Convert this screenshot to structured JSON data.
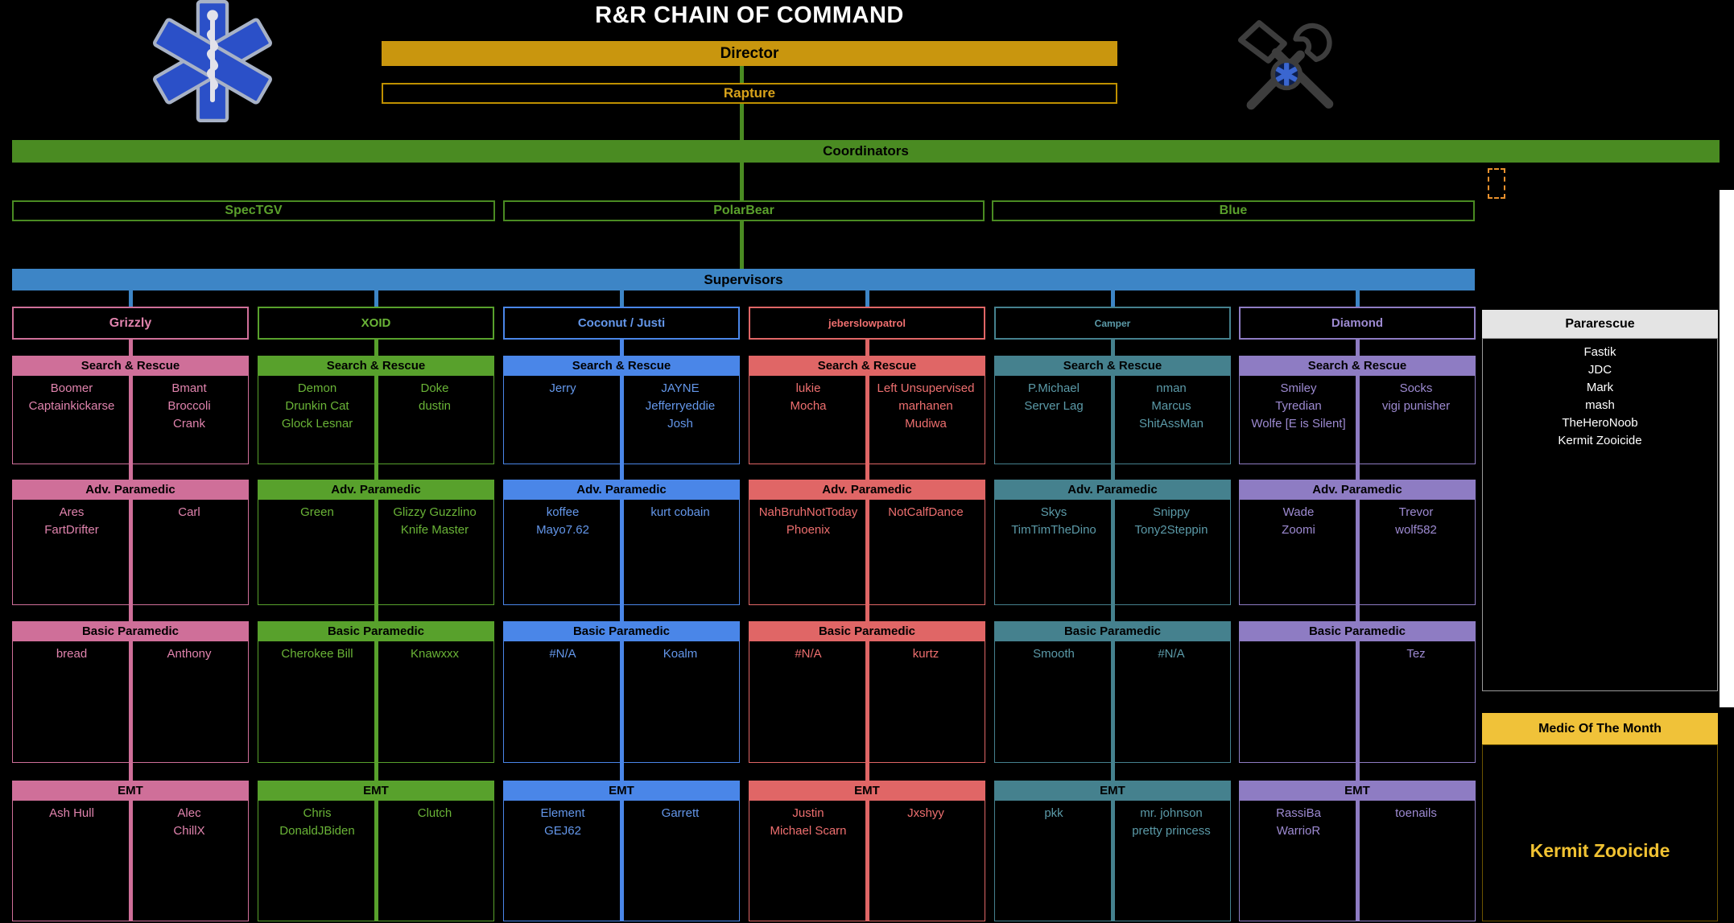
{
  "title": "R&R CHAIN OF COMMAND",
  "director": {
    "label": "Director"
  },
  "rapture": {
    "label": "Rapture"
  },
  "coordinators": {
    "label": "Coordinators",
    "members": [
      {
        "name": "SpecTGV"
      },
      {
        "name": "PolarBear"
      },
      {
        "name": "Blue"
      }
    ]
  },
  "supervisors": {
    "label": "Supervisors"
  },
  "columns": [
    {
      "name": "Grizzly",
      "fill": "#cf6f99",
      "text": "#e083ad",
      "sections": [
        {
          "title": "Search & Rescue",
          "left": [
            "Boomer",
            "Captainkickarse"
          ],
          "right": [
            "Bmant",
            "Broccoli",
            "Crank"
          ]
        },
        {
          "title": "Adv. Paramedic",
          "left": [
            "Ares",
            "FartDrifter"
          ],
          "right": [
            "Carl"
          ]
        },
        {
          "title": "Basic Paramedic",
          "left": [
            "bread"
          ],
          "right": [
            "Anthony"
          ]
        },
        {
          "title": "EMT",
          "left": [
            "Ash Hull"
          ],
          "right": [
            "Alec",
            "ChillX"
          ]
        }
      ]
    },
    {
      "name": "XOID",
      "fill": "#58a12c",
      "text": "#6ab437",
      "sections": [
        {
          "title": "Search & Rescue",
          "left": [
            "Demon",
            "Drunkin Cat",
            "Glock Lesnar"
          ],
          "right": [
            "Doke",
            "dustin"
          ]
        },
        {
          "title": "Adv. Paramedic",
          "left": [
            "Green"
          ],
          "right": [
            "Glizzy Guzzlino",
            "Knife Master"
          ]
        },
        {
          "title": "Basic Paramedic",
          "left": [
            "Cherokee Bill"
          ],
          "right": [
            "Knawxxx"
          ]
        },
        {
          "title": "EMT",
          "left": [
            "Chris",
            "DonaldJBiden"
          ],
          "right": [
            "Clutch"
          ]
        }
      ]
    },
    {
      "name": "Coconut / Justi",
      "fill": "#4a86e8",
      "text": "#6497ea",
      "sections": [
        {
          "title": "Search & Rescue",
          "left": [
            "Jerry"
          ],
          "right": [
            "JAYNE",
            "Jefferryeddie",
            "Josh"
          ]
        },
        {
          "title": "Adv. Paramedic",
          "left": [
            "koffee",
            "Mayo7.62"
          ],
          "right": [
            "kurt cobain"
          ]
        },
        {
          "title": "Basic Paramedic",
          "left": [
            "#N/A"
          ],
          "right": [
            "Koalm"
          ]
        },
        {
          "title": "EMT",
          "left": [
            "Element",
            "GEJ62"
          ],
          "right": [
            "Garrett"
          ]
        }
      ]
    },
    {
      "name": "jeberslowpatrol",
      "fill": "#e06666",
      "text": "#ee6f6f",
      "sections": [
        {
          "title": "Search & Rescue",
          "left": [
            "lukie",
            "Mocha"
          ],
          "right": [
            "Left Unsupervised",
            "marhanen",
            "Mudiwa"
          ]
        },
        {
          "title": "Adv. Paramedic",
          "left": [
            "NahBruhNotToday",
            "Phoenix"
          ],
          "right": [
            "NotCalfDance"
          ]
        },
        {
          "title": "Basic Paramedic",
          "left": [
            "#N/A"
          ],
          "right": [
            "kurtz"
          ]
        },
        {
          "title": "EMT",
          "left": [
            "Justin",
            "Michael Scarn"
          ],
          "right": [
            "Jxshyy"
          ]
        }
      ]
    },
    {
      "name": "Camper",
      "fill": "#45818e",
      "text": "#5b9aa8",
      "sections": [
        {
          "title": "Search & Rescue",
          "left": [
            "P.Michael",
            "Server Lag"
          ],
          "right": [
            "nman",
            "Marcus",
            "ShitAssMan"
          ]
        },
        {
          "title": "Adv. Paramedic",
          "left": [
            "Skys",
            "TimTimTheDino"
          ],
          "right": [
            "Snippy",
            "Tony2Steppin"
          ]
        },
        {
          "title": "Basic Paramedic",
          "left": [
            "Smooth"
          ],
          "right": [
            "#N/A"
          ]
        },
        {
          "title": "EMT",
          "left": [
            "pkk"
          ],
          "right": [
            "mr. johnson",
            "pretty princess"
          ]
        }
      ]
    },
    {
      "name": "Diamond",
      "fill": "#8e7cc3",
      "text": "#9d8ad1",
      "sections": [
        {
          "title": "Search & Rescue",
          "left": [
            "Smiley",
            "Tyredian",
            "Wolfe [E is Silent]"
          ],
          "right": [
            "Socks",
            "vigi punisher"
          ]
        },
        {
          "title": "Adv. Paramedic",
          "left": [
            "Wade",
            "Zoomi"
          ],
          "right": [
            "Trevor",
            "wolf582"
          ]
        },
        {
          "title": "Basic Paramedic",
          "left": [],
          "right": [
            "Tez"
          ]
        },
        {
          "title": "EMT",
          "left": [
            "RassiBa",
            "WarrioR"
          ],
          "right": [
            "toenails"
          ]
        }
      ]
    }
  ],
  "pararescue": {
    "title": "Pararescue",
    "names": [
      "Fastik",
      "JDC",
      "Mark",
      "mash",
      "TheHeroNoob",
      "Kermit Zooicide"
    ]
  },
  "medic_of_the_month": {
    "title": "Medic Of The Month",
    "name": "Kermit Zooicide"
  },
  "logos": {
    "left": "star-of-life",
    "right": "crossed-tools"
  },
  "colors": {
    "background": "#000000",
    "title_text": "#ffffff",
    "director_gold": "#c9960e",
    "rapture_gold": "#bf9000",
    "rapture_text": "#d8a21a",
    "coordinator_green": "#4a8b22",
    "coordinator_text": "#5aa02c",
    "supervisor_blue": "#3d85c6",
    "selection_orange": "#e8912d",
    "pararescue_header_bg": "#e4e4e4",
    "medic_gold": "#f0c239",
    "medic_name_gold": "#f1c232",
    "unformatted_cells": "#ffffff"
  }
}
